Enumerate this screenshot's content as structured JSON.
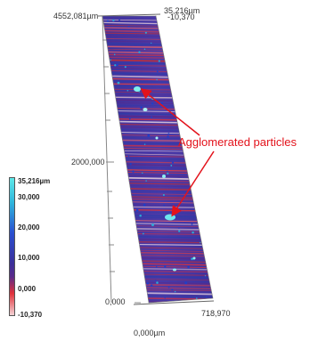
{
  "axis_labels": {
    "top_left": "4552,081µm",
    "top_right_a": "35,216µm",
    "top_right_b": "-10,370",
    "mid_left": "2000,000",
    "bottom_left": "0,000",
    "bottom_center": "0,000µm",
    "bottom_right": "718,970"
  },
  "color_scale": {
    "labels": [
      "35,216µm",
      "30,000",
      "20,000",
      "10,000",
      "0,000",
      "-10,370"
    ],
    "colors": [
      "#5ee8e8",
      "#2fb5dc",
      "#2a4fd0",
      "#3a2f9a",
      "#5a2a8a",
      "#e0303a",
      "#f2d2d4"
    ]
  },
  "annotation": {
    "text": "Agglomerated particles",
    "color": "#e3121b"
  }
}
